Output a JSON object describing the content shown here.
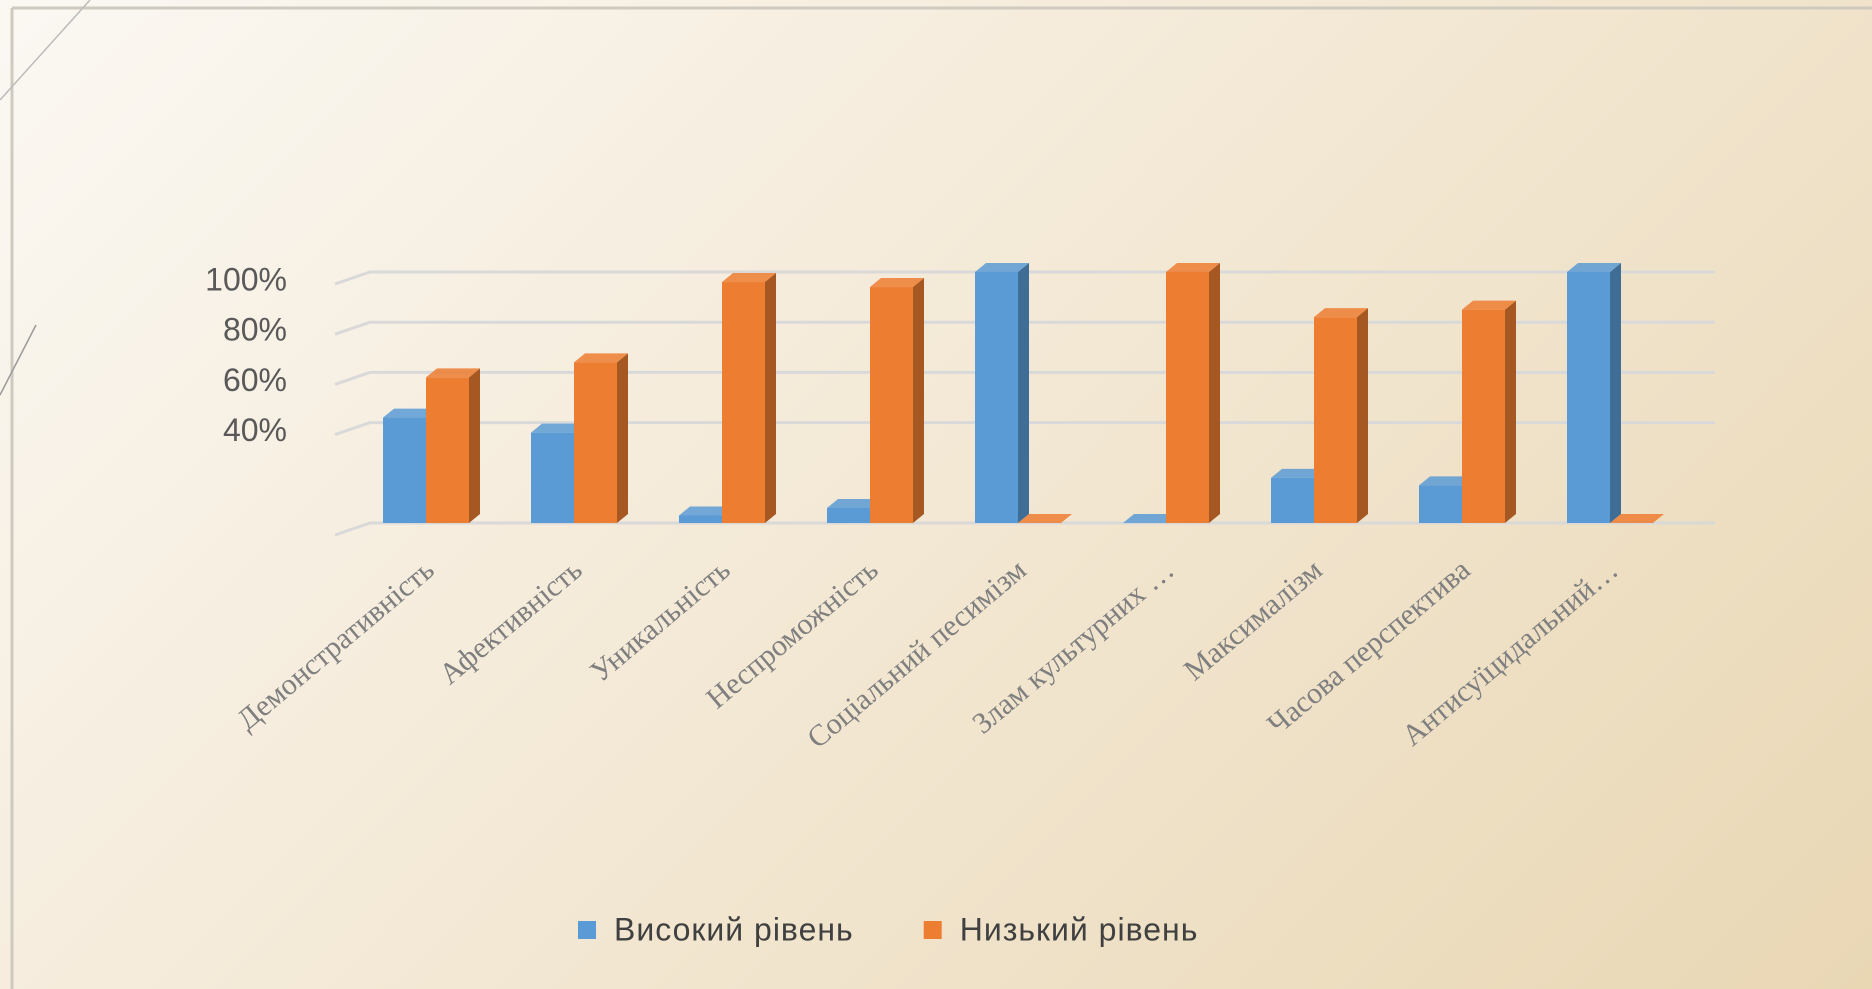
{
  "chart_data": {
    "type": "bar3d",
    "categories": [
      "Демонстративність",
      "Афективність",
      "Уникальність",
      "Неспроможність",
      "Соціальний песимізм",
      "Злам культурних …",
      "Максималізм",
      "Часова перспектива",
      "Антисуїцидальний…"
    ],
    "series": [
      {
        "name": "Високий рівень",
        "color": "#5b9bd5",
        "values": [
          42,
          36,
          3,
          6,
          100,
          0,
          18,
          15,
          100
        ]
      },
      {
        "name": "Низький рівень",
        "color": "#ed7d31",
        "values": [
          58,
          64,
          96,
          94,
          0,
          100,
          82,
          85,
          0
        ]
      }
    ],
    "ylim": [
      0,
      100
    ],
    "yticks": [
      {
        "value": 40,
        "label": "40%"
      },
      {
        "value": 60,
        "label": "60%"
      },
      {
        "value": 80,
        "label": "80%"
      },
      {
        "value": 100,
        "label": "100%"
      }
    ],
    "grid": true,
    "legend": "bottom"
  }
}
